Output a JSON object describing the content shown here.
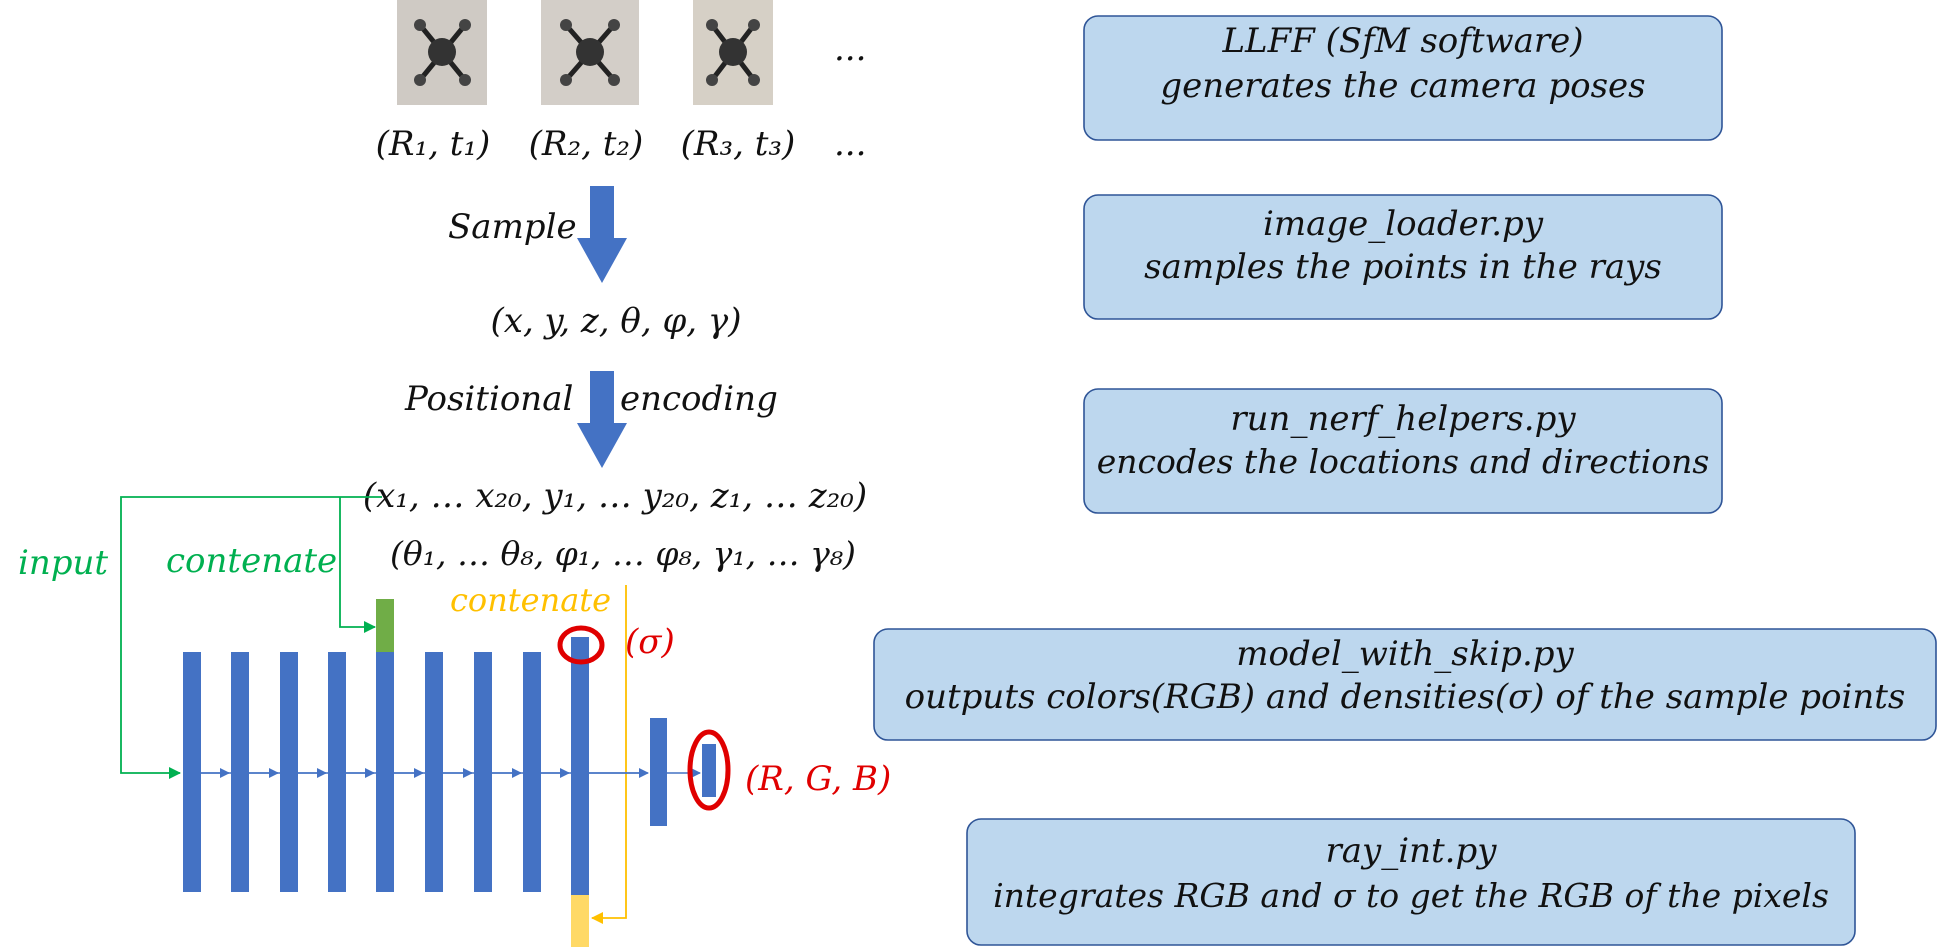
{
  "colors": {
    "box_fill": "#bdd7ee",
    "box_stroke": "#2f5597",
    "layer_blue": "#4472c4",
    "green": "#00b050",
    "green_block": "#70ad47",
    "yellow": "#ffc000",
    "yellow_block": "#ffd966",
    "red": "#e00000"
  },
  "top": {
    "image_placeholders": [
      "drone-photo-1",
      "drone-photo-2",
      "drone-photo-3"
    ],
    "image_ellipsis": "...",
    "poses": [
      "(R₁, t₁)",
      "(R₂, t₂)",
      "(R₃, t₃)"
    ],
    "poses_ellipsis": "..."
  },
  "flow": {
    "sample_label": "Sample",
    "sample_output": "(x, y, z, θ, φ, γ)",
    "positional_label_left": "Positional",
    "positional_label_right": "encoding",
    "encoded_line1": "(x₁, … x₂₀, y₁, … y₂₀, z₁, … z₂₀)",
    "encoded_line2": "(θ₁, … θ₈, φ₁, … φ₈, γ₁, … γ₈)"
  },
  "network": {
    "input_label": "input",
    "concat_green_label": "contenate",
    "concat_yellow_label": "contenate",
    "sigma_label": "(σ)",
    "rgb_label": "(R, G, B)"
  },
  "boxes": [
    {
      "line1": "LLFF (SfM software)",
      "line2": "generates the camera poses"
    },
    {
      "line1": "image_loader.py",
      "line2": "samples the points in the rays"
    },
    {
      "line1": "run_nerf_helpers.py",
      "line2": "encodes the locations and directions"
    },
    {
      "line1": "model_with_skip.py",
      "line2": "outputs colors(RGB) and densities(σ) of the sample points"
    },
    {
      "line1": "ray_int.py",
      "line2": "integrates RGB and σ to get the RGB of the pixels"
    }
  ]
}
